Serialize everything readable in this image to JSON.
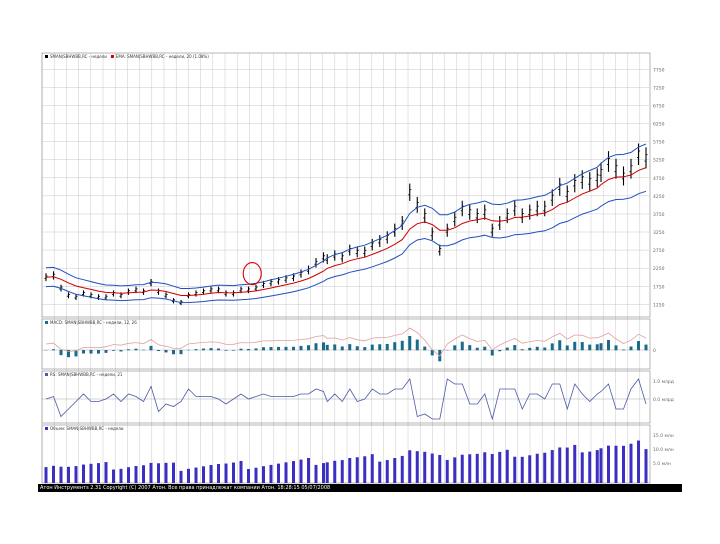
{
  "status_bar": "Атон Инструментs 2.31 Copyright (C) 2007 Атон. Все права принадлежат компании Атон. 18:28:15 05/07/2008",
  "colors": {
    "price": "#000000",
    "ema": "#cc0000",
    "upper_band": "#1f4fbf",
    "lower_band": "#1f4fbf",
    "macd_hist": "#1a6a8a",
    "macd_line": "#e0a0a0",
    "macd_signal": "#c9b0b8",
    "rsi": "#4a5aa8",
    "volume": "#3a2fc0",
    "highlight": "#dd0000",
    "grid": "#c8c8c8"
  },
  "chart_data": [
    {
      "type": "line",
      "panel": "price",
      "legend": [
        {
          "label": "SMAN|SBHWBB,RC - недели",
          "color": "#000000"
        },
        {
          "label": "EMA: SMAN|SBHWBB,RC - недели, 20 (1.08%)",
          "color": "#cc0000"
        }
      ],
      "y_ticks": [
        "7750",
        "7250",
        "6750",
        "6250",
        "5750",
        "5250",
        "4750",
        "4250",
        "3750",
        "3250",
        "2750",
        "2250",
        "1750",
        "1250"
      ],
      "ylim": [
        900,
        8200
      ],
      "x": [
        0,
        4,
        8,
        12,
        16,
        20,
        24,
        28,
        32,
        36,
        40,
        44,
        48,
        52,
        56,
        60,
        64,
        68,
        72,
        76,
        80,
        84,
        88,
        92,
        96,
        100,
        104,
        108,
        112,
        116,
        120,
        124,
        128,
        132,
        136,
        140,
        144,
        148,
        150,
        154,
        158,
        162,
        166,
        170,
        174,
        178,
        182,
        186,
        190,
        194,
        198,
        202,
        206,
        210,
        214,
        218,
        222,
        226,
        230,
        234,
        238,
        242,
        246,
        250,
        254,
        258,
        262,
        266,
        270,
        274,
        278,
        282,
        286,
        290,
        294,
        296,
        300,
        304,
        308,
        312,
        316,
        320
      ],
      "series": [
        {
          "name": "SMAN|SBHWBB,RC",
          "values": [
            2000,
            2050,
            1700,
            1500,
            1450,
            1550,
            1500,
            1450,
            1450,
            1550,
            1500,
            1600,
            1650,
            1600,
            1850,
            1600,
            1500,
            1350,
            1300,
            1500,
            1550,
            1600,
            1650,
            1650,
            1550,
            1550,
            1650,
            1650,
            1700,
            1800,
            1850,
            1900,
            1950,
            2000,
            2100,
            2200,
            2400,
            2550,
            2500,
            2600,
            2550,
            2750,
            2700,
            2700,
            2900,
            3000,
            3100,
            3300,
            3500,
            4350,
            4000,
            3700,
            3200,
            2750,
            3300,
            3600,
            3900,
            3800,
            3700,
            3800,
            3300,
            3500,
            3700,
            3900,
            3700,
            3800,
            3900,
            3900,
            4200,
            4500,
            4300,
            4600,
            4700,
            4650,
            4750,
            4900,
            5200,
            5000,
            4800,
            5000,
            5400,
            5300
          ]
        }
      ],
      "highlight_circle": {
        "x": 110,
        "y": 2100
      }
    },
    {
      "type": "bar",
      "panel": "macd",
      "legend": [
        {
          "label": "MACD: SMAN|SBHWBB,RC - недели, 12, 26",
          "color": "#1a6a8a"
        }
      ],
      "y_ticks": [
        "0"
      ]
    },
    {
      "type": "line",
      "panel": "rsi",
      "legend": [
        {
          "label": "RS: SMAN|SBHWBB,RC - недели, 21",
          "color": "#4a5aa8"
        }
      ],
      "y_ticks": [
        "1.0 млрд",
        "0.0 млрд"
      ]
    },
    {
      "type": "bar",
      "panel": "volume",
      "legend": [
        {
          "label": "Объем: SMAN|SBHWBB,RC - недели",
          "color": "#3a2fc0"
        }
      ],
      "y_ticks": [
        "15.0 млн",
        "10.0 млн",
        "5.0 млн"
      ]
    }
  ]
}
